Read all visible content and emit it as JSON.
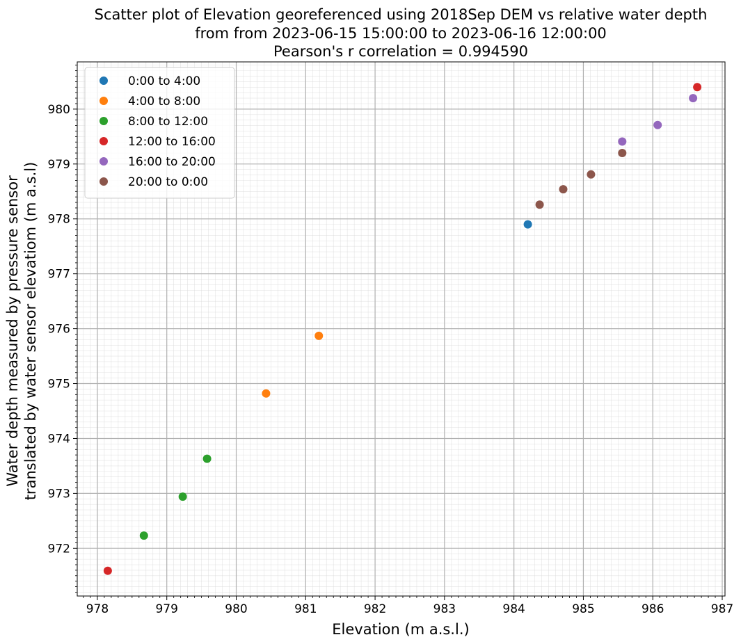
{
  "chart_data": {
    "type": "scatter",
    "title_lines": [
      "Scatter plot of Elevation georeferenced using 2018Sep DEM vs relative water depth",
      "from from 2023-06-15 15:00:00 to 2023-06-16 12:00:00",
      "Pearson's r correlation = 0.994590"
    ],
    "xlabel": "Elevation (m a.s.l.)",
    "ylabel_lines": [
      "Water depth measured by pressure sensor",
      "translated by water sensor elevatiom (m a.s.l)"
    ],
    "xlim": [
      977.71,
      987.04
    ],
    "ylim": [
      971.13,
      980.86
    ],
    "xticks": [
      978,
      979,
      980,
      981,
      982,
      983,
      984,
      985,
      986,
      987
    ],
    "yticks": [
      972,
      973,
      974,
      975,
      976,
      977,
      978,
      979,
      980
    ],
    "grid": true,
    "minor_grid": true,
    "legend_position": "upper-left",
    "series": [
      {
        "name": "0:00 to 4:00",
        "color": "#1f77b4",
        "points": [
          [
            984.2,
            977.9
          ]
        ]
      },
      {
        "name": "4:00 to 8:00",
        "color": "#ff7f0e",
        "points": [
          [
            980.43,
            974.82
          ],
          [
            981.19,
            975.87
          ]
        ]
      },
      {
        "name": "8:00 to 12:00",
        "color": "#2ca02c",
        "points": [
          [
            978.67,
            972.23
          ],
          [
            979.23,
            972.94
          ],
          [
            979.58,
            973.63
          ]
        ]
      },
      {
        "name": "12:00 to 16:00",
        "color": "#d62728",
        "points": [
          [
            978.15,
            971.59
          ],
          [
            986.64,
            980.4
          ]
        ]
      },
      {
        "name": "16:00 to 20:00",
        "color": "#9467bd",
        "points": [
          [
            985.56,
            979.41
          ],
          [
            986.07,
            979.71
          ],
          [
            986.58,
            980.2
          ]
        ]
      },
      {
        "name": "20:00 to 0:00",
        "color": "#8c564b",
        "points": [
          [
            984.37,
            978.26
          ],
          [
            984.71,
            978.54
          ],
          [
            985.11,
            978.81
          ],
          [
            985.56,
            979.2
          ]
        ]
      }
    ]
  }
}
